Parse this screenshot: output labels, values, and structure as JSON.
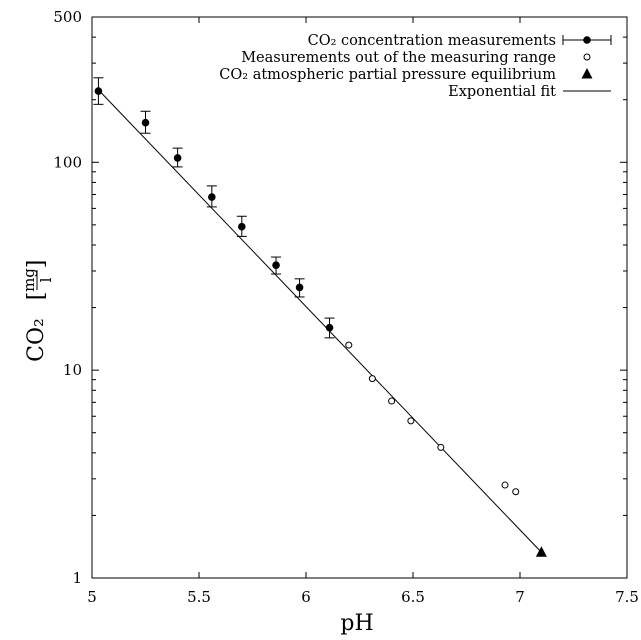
{
  "chart_data": {
    "type": "scatter",
    "xlabel": "pH",
    "ylabel": "CO₂",
    "ylabel_unit_num": "mg",
    "ylabel_unit_den": "l",
    "xlim": [
      5,
      7.5
    ],
    "ylim": [
      1,
      500
    ],
    "yscale": "log",
    "grid": false,
    "legend_position": "top-right",
    "x_ticks": [
      "5",
      "5.5",
      "6",
      "6.5",
      "7",
      "7.5"
    ],
    "x_tick_values": [
      5,
      5.5,
      6,
      6.5,
      7,
      7.5
    ],
    "y_ticks": [
      "1",
      "10",
      "100",
      "500"
    ],
    "y_tick_values": [
      1,
      10,
      100,
      500
    ],
    "series": [
      {
        "name": "CO₂ concentration measurements",
        "marker": "filled-circle-errorbar",
        "points": [
          {
            "x": 5.03,
            "y": 220,
            "err_low": 190,
            "err_high": 255
          },
          {
            "x": 5.25,
            "y": 155,
            "err_low": 138,
            "err_high": 176
          },
          {
            "x": 5.4,
            "y": 105,
            "err_low": 95,
            "err_high": 117
          },
          {
            "x": 5.56,
            "y": 68,
            "err_low": 61,
            "err_high": 77
          },
          {
            "x": 5.7,
            "y": 49,
            "err_low": 44,
            "err_high": 55
          },
          {
            "x": 5.86,
            "y": 32,
            "err_low": 29,
            "err_high": 35
          },
          {
            "x": 5.97,
            "y": 25,
            "err_low": 22.5,
            "err_high": 27.5
          },
          {
            "x": 6.11,
            "y": 16,
            "err_low": 14.3,
            "err_high": 17.8
          }
        ]
      },
      {
        "name": "Measurements out of the measuring range",
        "marker": "open-circle",
        "points": [
          {
            "x": 6.2,
            "y": 13.2
          },
          {
            "x": 6.31,
            "y": 9.1
          },
          {
            "x": 6.4,
            "y": 7.1
          },
          {
            "x": 6.49,
            "y": 5.7
          },
          {
            "x": 6.63,
            "y": 4.25
          },
          {
            "x": 6.93,
            "y": 2.8
          },
          {
            "x": 6.98,
            "y": 2.6
          }
        ]
      },
      {
        "name": "CO₂ atmospheric partial pressure equilibrium",
        "marker": "filled-triangle",
        "points": [
          {
            "x": 7.1,
            "y": 1.33
          }
        ]
      },
      {
        "name": "Exponential fit",
        "marker": "line",
        "line": [
          {
            "x": 5.03,
            "y": 223
          },
          {
            "x": 7.1,
            "y": 1.33
          }
        ]
      }
    ]
  }
}
